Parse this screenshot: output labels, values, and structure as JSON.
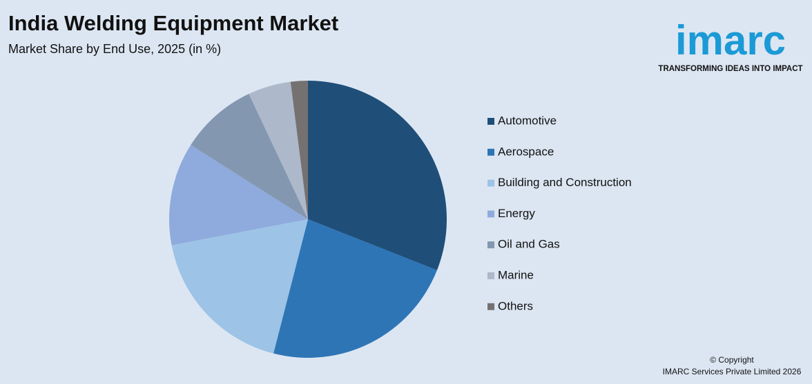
{
  "chart_data": {
    "type": "pie",
    "title": "India Welding Equipment Market",
    "subtitle": "Market Share by End Use, 2025 (in %)",
    "categories": [
      "Automotive",
      "Aerospace",
      "Building and Construction",
      "Energy",
      "Oil and Gas",
      "Marine",
      "Others"
    ],
    "values": [
      31,
      23,
      18,
      12,
      9,
      5,
      2
    ],
    "colors": [
      "#1f4e79",
      "#2e75b6",
      "#9dc3e6",
      "#8faadc",
      "#8497b0",
      "#adb9ca",
      "#767171"
    ],
    "legend": "right"
  },
  "logo": {
    "text": "imarc",
    "tagline": "TRANSFORMING IDEAS INTO IMPACT"
  },
  "footer": {
    "line1": "© Copyright",
    "line2": "IMARC Services Private Limited 2026"
  }
}
